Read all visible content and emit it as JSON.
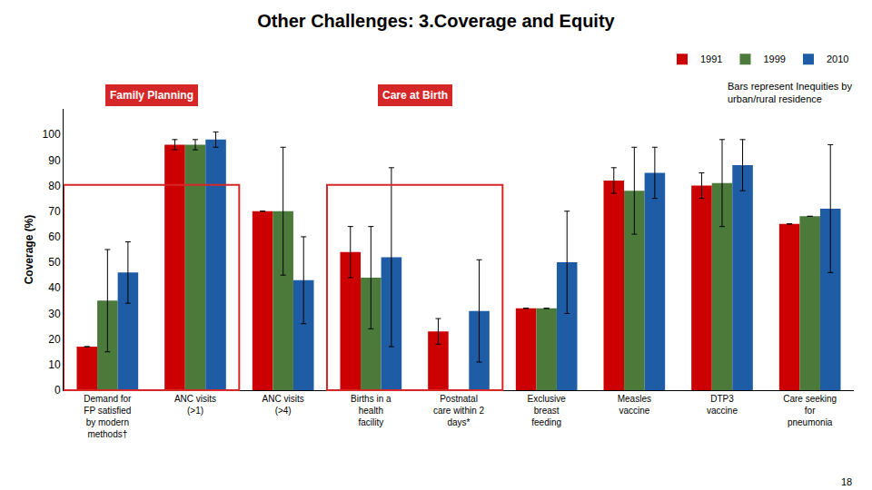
{
  "chart_data": {
    "type": "bar",
    "title": "Other Challenges: 3.Coverage and Equity",
    "ylabel": "Coverage (%)",
    "categories": [
      "Demand for\nFP satisfied\nby modern\nmethods†",
      "ANC visits\n(>1)",
      "ANC visits\n(>4)",
      "Births in a\nhealth\nfacility",
      "Postnatal\ncare within 2\ndays*",
      "Exclusive\nbreast\nfeeding",
      "Measles\nvaccine",
      "DTP3\nvaccine",
      "Care seeking\nfor\npneumonia"
    ],
    "series": [
      {
        "name": "1991",
        "color": "#CC0000",
        "values": [
          17,
          96,
          70,
          54,
          23,
          32,
          82,
          80,
          65
        ],
        "errors": [
          0,
          2,
          0,
          10,
          5,
          0,
          5,
          5,
          0
        ]
      },
      {
        "name": "1999",
        "color": "#4C7A3A",
        "values": [
          35,
          96,
          70,
          44,
          null,
          32,
          78,
          81,
          68
        ],
        "errors": [
          20,
          2,
          25,
          20,
          0,
          0,
          17,
          17,
          0
        ]
      },
      {
        "name": "2010",
        "color": "#1F5CA6",
        "values": [
          46,
          98,
          43,
          52,
          31,
          50,
          85,
          88,
          71
        ],
        "errors": [
          12,
          3,
          17,
          35,
          20,
          20,
          10,
          10,
          25
        ]
      }
    ],
    "ylim": [
      0,
      110
    ],
    "yticks": [
      0,
      10,
      20,
      30,
      40,
      50,
      60,
      70,
      80,
      90,
      100
    ],
    "grid": false,
    "legend": "top right",
    "annotations": [
      "Family Planning",
      "Care at Birth",
      "Bars represent Inequities by\nurban/rural residence",
      "18"
    ]
  }
}
